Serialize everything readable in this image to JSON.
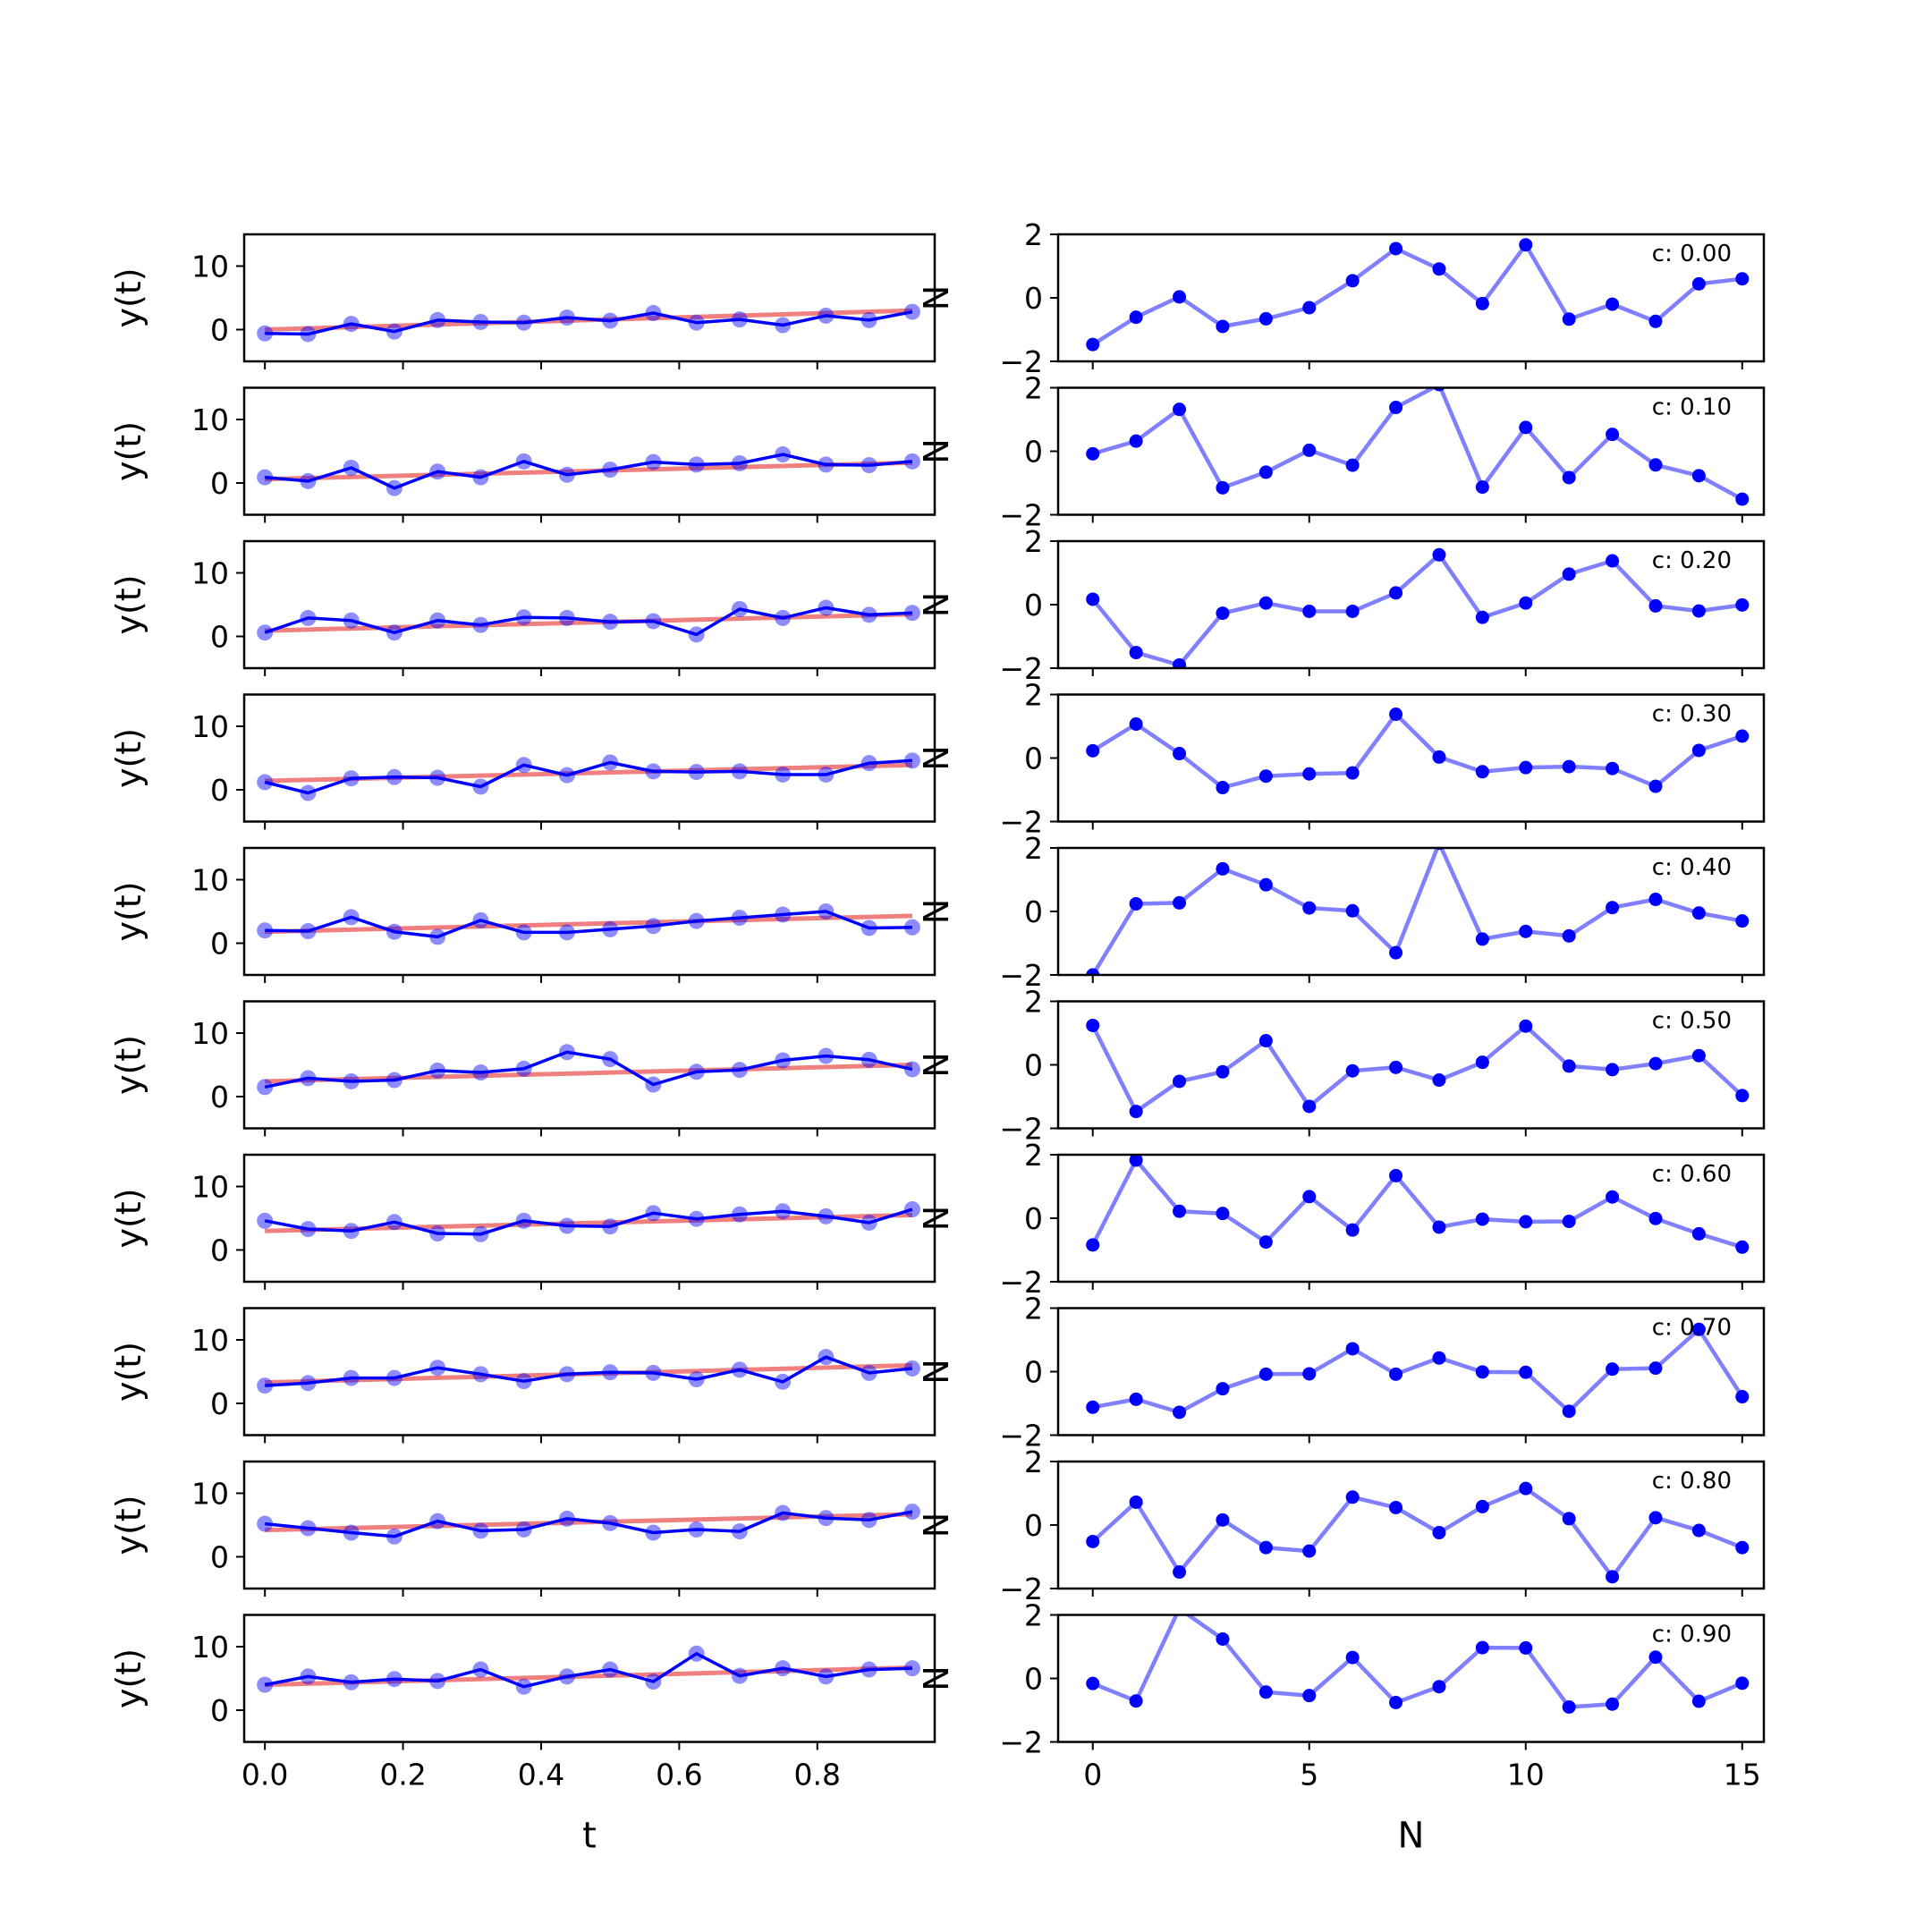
{
  "chart_data": {
    "type": "line",
    "t": [
      0.0,
      0.0625,
      0.125,
      0.1875,
      0.25,
      0.3125,
      0.375,
      0.4375,
      0.5,
      0.5625,
      0.625,
      0.6875,
      0.75,
      0.8125,
      0.875,
      0.9375
    ],
    "n": [
      0,
      1,
      2,
      3,
      4,
      5,
      6,
      7,
      8,
      9,
      10,
      11,
      12,
      13,
      14,
      15
    ],
    "left_axis": {
      "xlabel": "t",
      "ylabel": "y(t)",
      "ylim": [
        -5,
        15
      ],
      "yticks": [
        "0",
        "10"
      ],
      "xticks": [
        "0.0",
        "0.2",
        "0.4",
        "0.6",
        "0.8"
      ],
      "xlim": [
        -0.03,
        0.97
      ]
    },
    "right_axis": {
      "xlabel": "N",
      "ylabel": "N",
      "ylim": [
        -2,
        2
      ],
      "yticks": [
        "−2",
        "0",
        "2"
      ],
      "xticks": [
        "0",
        "5",
        "10",
        "15"
      ],
      "xlim": [
        -0.8,
        15.5
      ]
    },
    "colors": {
      "data": "#0000ff",
      "fit": "#f08080",
      "noise": "#0000ff"
    },
    "panels": [
      {
        "label": "c: 0.00",
        "fit": [
          0.0,
          3.0
        ],
        "y": [
          -0.6,
          -0.7,
          0.9,
          -0.3,
          1.5,
          1.2,
          1.1,
          1.9,
          1.4,
          2.6,
          1.1,
          1.6,
          0.7,
          2.2,
          1.5,
          2.8
        ],
        "noise": [
          -1.47,
          -0.61,
          0.03,
          -0.9,
          -0.66,
          -0.31,
          0.54,
          1.55,
          0.91,
          -0.18,
          1.67,
          -0.67,
          -0.2,
          -0.74,
          0.44,
          0.6
        ]
      },
      {
        "label": "c: 0.10",
        "fit": [
          0.6,
          3.2
        ],
        "y": [
          0.9,
          0.3,
          2.4,
          -0.8,
          1.8,
          0.9,
          3.4,
          1.3,
          2.1,
          3.3,
          2.9,
          3.1,
          4.5,
          2.9,
          2.8,
          3.4
        ],
        "noise": [
          -0.08,
          0.32,
          1.32,
          -1.15,
          -0.66,
          0.03,
          -0.44,
          1.38,
          2.1,
          -1.13,
          0.75,
          -0.83,
          0.53,
          -0.43,
          -0.77,
          -1.51
        ]
      },
      {
        "label": "c: 0.20",
        "fit": [
          0.9,
          3.5
        ],
        "y": [
          0.6,
          2.9,
          2.5,
          0.6,
          2.5,
          1.8,
          3.0,
          2.9,
          2.3,
          2.4,
          0.3,
          4.3,
          2.9,
          4.5,
          3.4,
          3.7
        ],
        "noise": [
          0.17,
          -1.51,
          -1.9,
          -0.27,
          0.05,
          -0.21,
          -0.21,
          0.37,
          1.57,
          -0.4,
          0.05,
          0.96,
          1.38,
          -0.04,
          -0.2,
          -0.01
        ]
      },
      {
        "label": "c: 0.30",
        "fit": [
          1.4,
          3.9
        ],
        "y": [
          1.2,
          -0.5,
          1.8,
          2.0,
          1.9,
          0.5,
          3.9,
          2.3,
          4.3,
          2.9,
          2.8,
          2.9,
          2.4,
          2.4,
          4.2,
          4.6
        ],
        "noise": [
          0.23,
          1.07,
          0.14,
          -0.93,
          -0.57,
          -0.5,
          -0.47,
          1.38,
          0.03,
          -0.43,
          -0.3,
          -0.27,
          -0.33,
          -0.89,
          0.24,
          0.69
        ]
      },
      {
        "label": "c: 0.40",
        "fit": [
          1.8,
          4.3
        ],
        "y": [
          2.0,
          1.9,
          4.1,
          1.8,
          1.0,
          3.6,
          1.7,
          1.7,
          2.2,
          2.7,
          3.5,
          4.0,
          4.5,
          5.0,
          2.4,
          2.5
        ],
        "noise": [
          -2.0,
          0.24,
          0.27,
          1.34,
          0.84,
          0.11,
          0.02,
          -1.3,
          2.15,
          -0.87,
          -0.63,
          -0.77,
          0.12,
          0.38,
          -0.05,
          -0.3
        ]
      },
      {
        "label": "c: 0.50",
        "fit": [
          2.4,
          5.0
        ],
        "y": [
          1.5,
          2.9,
          2.4,
          2.6,
          4.1,
          3.8,
          4.4,
          7.0,
          5.9,
          1.9,
          3.9,
          4.2,
          5.7,
          6.4,
          5.8,
          4.3
        ],
        "noise": [
          1.24,
          -1.47,
          -0.52,
          -0.22,
          0.76,
          -1.31,
          -0.19,
          -0.08,
          -0.48,
          0.08,
          1.22,
          -0.04,
          -0.15,
          0.04,
          0.29,
          -0.97
        ]
      },
      {
        "label": "c: 0.60",
        "fit": [
          3.0,
          5.5
        ],
        "y": [
          4.6,
          3.3,
          3.0,
          4.4,
          2.6,
          2.5,
          4.6,
          3.8,
          3.7,
          5.8,
          4.9,
          5.6,
          6.1,
          5.3,
          4.3,
          6.4
        ],
        "noise": [
          -0.84,
          1.83,
          0.22,
          0.15,
          -0.75,
          0.68,
          -0.37,
          1.34,
          -0.28,
          -0.03,
          -0.11,
          -0.1,
          0.67,
          -0.01,
          -0.49,
          -0.91
        ]
      },
      {
        "label": "c: 0.70",
        "fit": [
          3.3,
          6.0
        ],
        "y": [
          2.8,
          3.2,
          4.0,
          4.0,
          5.6,
          4.6,
          3.5,
          4.6,
          4.9,
          4.8,
          3.8,
          5.3,
          3.4,
          7.3,
          4.8,
          5.5
        ],
        "noise": [
          -1.12,
          -0.87,
          -1.28,
          -0.54,
          -0.08,
          -0.07,
          0.72,
          -0.08,
          0.43,
          -0.01,
          -0.02,
          -1.25,
          0.08,
          0.11,
          1.33,
          -0.79
        ]
      },
      {
        "label": "c: 0.80",
        "fit": [
          4.2,
          6.7
        ],
        "y": [
          5.2,
          4.5,
          3.8,
          3.2,
          5.6,
          4.1,
          4.3,
          6.0,
          5.3,
          3.8,
          4.3,
          4.0,
          6.9,
          6.1,
          5.8,
          7.1
        ],
        "noise": [
          -0.52,
          0.72,
          -1.48,
          0.16,
          -0.71,
          -0.82,
          0.88,
          0.55,
          -0.24,
          0.58,
          1.15,
          0.2,
          -1.63,
          0.23,
          -0.17,
          -0.71
        ]
      },
      {
        "label": "c: 0.90",
        "fit": [
          4.0,
          6.7
        ],
        "y": [
          4.0,
          5.3,
          4.4,
          4.9,
          4.6,
          6.4,
          3.7,
          5.3,
          6.4,
          4.5,
          8.9,
          5.4,
          6.6,
          5.3,
          6.4,
          6.6
        ],
        "noise": [
          -0.16,
          -0.71,
          2.2,
          1.24,
          -0.43,
          -0.54,
          0.66,
          -0.76,
          -0.26,
          0.97,
          0.96,
          -0.9,
          -0.81,
          0.67,
          -0.72,
          -0.15
        ]
      }
    ]
  }
}
